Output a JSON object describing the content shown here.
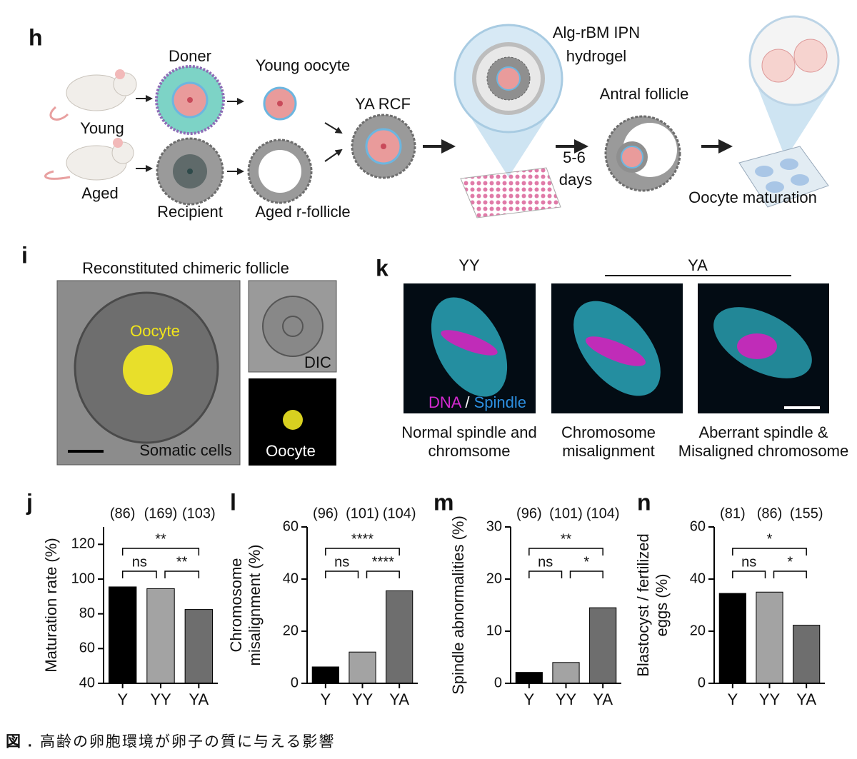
{
  "panel_h": {
    "letter": "h",
    "doner": "Doner",
    "young_oocyte": "Young oocyte",
    "young": "Young",
    "aged": "Aged",
    "recipient": "Recipient",
    "aged_follicle": "Aged r-follicle",
    "ya_rcf": "YA RCF",
    "hydrogel_1": "Alg-rBM IPN",
    "hydrogel_2": "hydrogel",
    "antral": "Antral follicle",
    "days_1": "5-6",
    "days_2": "days",
    "maturation": "Oocyte maturation"
  },
  "panel_i": {
    "letter": "i",
    "title": "Reconstituted chimeric follicle",
    "oocyte_label": "Oocyte",
    "somatic": "Somatic cells",
    "dic": "DIC",
    "oocyte_inset": "Oocyte"
  },
  "panel_k": {
    "letter": "k",
    "group_yy": "YY",
    "group_ya": "YA",
    "dna": "DNA",
    "slash": " / ",
    "spindle": "Spindle",
    "caption_1": [
      "Normal spindle and",
      "chromsome"
    ],
    "caption_2": [
      "Chromosome",
      "misalignment"
    ],
    "caption_3": [
      "Aberrant spindle &",
      "Misaligned chromosome"
    ]
  },
  "chart_data": [
    {
      "type": "bar",
      "panel": "j",
      "ylabel": [
        "Maturation rate (%)"
      ],
      "categories": [
        "Y",
        "YY",
        "YA"
      ],
      "n_labels": [
        "(86)",
        "(169)",
        "(103)"
      ],
      "values": [
        95.5,
        94.5,
        82.5
      ],
      "colors": [
        "#000000",
        "#a3a3a3",
        "#6e6e6e"
      ],
      "ylim": [
        40,
        130
      ],
      "yticks": [
        40,
        60,
        80,
        100,
        120
      ],
      "significance": [
        "ns",
        "**",
        "**"
      ]
    },
    {
      "type": "bar",
      "panel": "l",
      "ylabel": [
        "Chromosome",
        "misalignment (%)"
      ],
      "categories": [
        "Y",
        "YY",
        "YA"
      ],
      "n_labels": [
        "(96)",
        "(101)",
        "(104)"
      ],
      "values": [
        6.3,
        12,
        35.5
      ],
      "colors": [
        "#000000",
        "#a3a3a3",
        "#6e6e6e"
      ],
      "ylim": [
        0,
        60
      ],
      "yticks": [
        0,
        20,
        40,
        60
      ],
      "significance": [
        "ns",
        "****",
        "****"
      ]
    },
    {
      "type": "bar",
      "panel": "m",
      "ylabel": [
        "Spindle abnormalities (%)"
      ],
      "categories": [
        "Y",
        "YY",
        "YA"
      ],
      "n_labels": [
        "(96)",
        "(101)",
        "(104)"
      ],
      "values": [
        2.1,
        4,
        14.5
      ],
      "colors": [
        "#000000",
        "#a3a3a3",
        "#6e6e6e"
      ],
      "ylim": [
        0,
        30
      ],
      "yticks": [
        0,
        10,
        20,
        30
      ],
      "significance": [
        "ns",
        "*",
        "**"
      ]
    },
    {
      "type": "bar",
      "panel": "n",
      "ylabel": [
        "Blastocyst / fertilized",
        "eggs (%)"
      ],
      "categories": [
        "Y",
        "YY",
        "YA"
      ],
      "n_labels": [
        "(81)",
        "(86)",
        "(155)"
      ],
      "values": [
        34.5,
        35,
        22.3
      ],
      "colors": [
        "#000000",
        "#a3a3a3",
        "#6e6e6e"
      ],
      "ylim": [
        0,
        60
      ],
      "yticks": [
        0,
        20,
        40,
        60
      ],
      "significance": [
        "ns",
        "*",
        "*"
      ]
    }
  ],
  "caption": {
    "label": "図 .",
    "text": "高齢の卵胞環境が卵子の質に与える影響"
  }
}
